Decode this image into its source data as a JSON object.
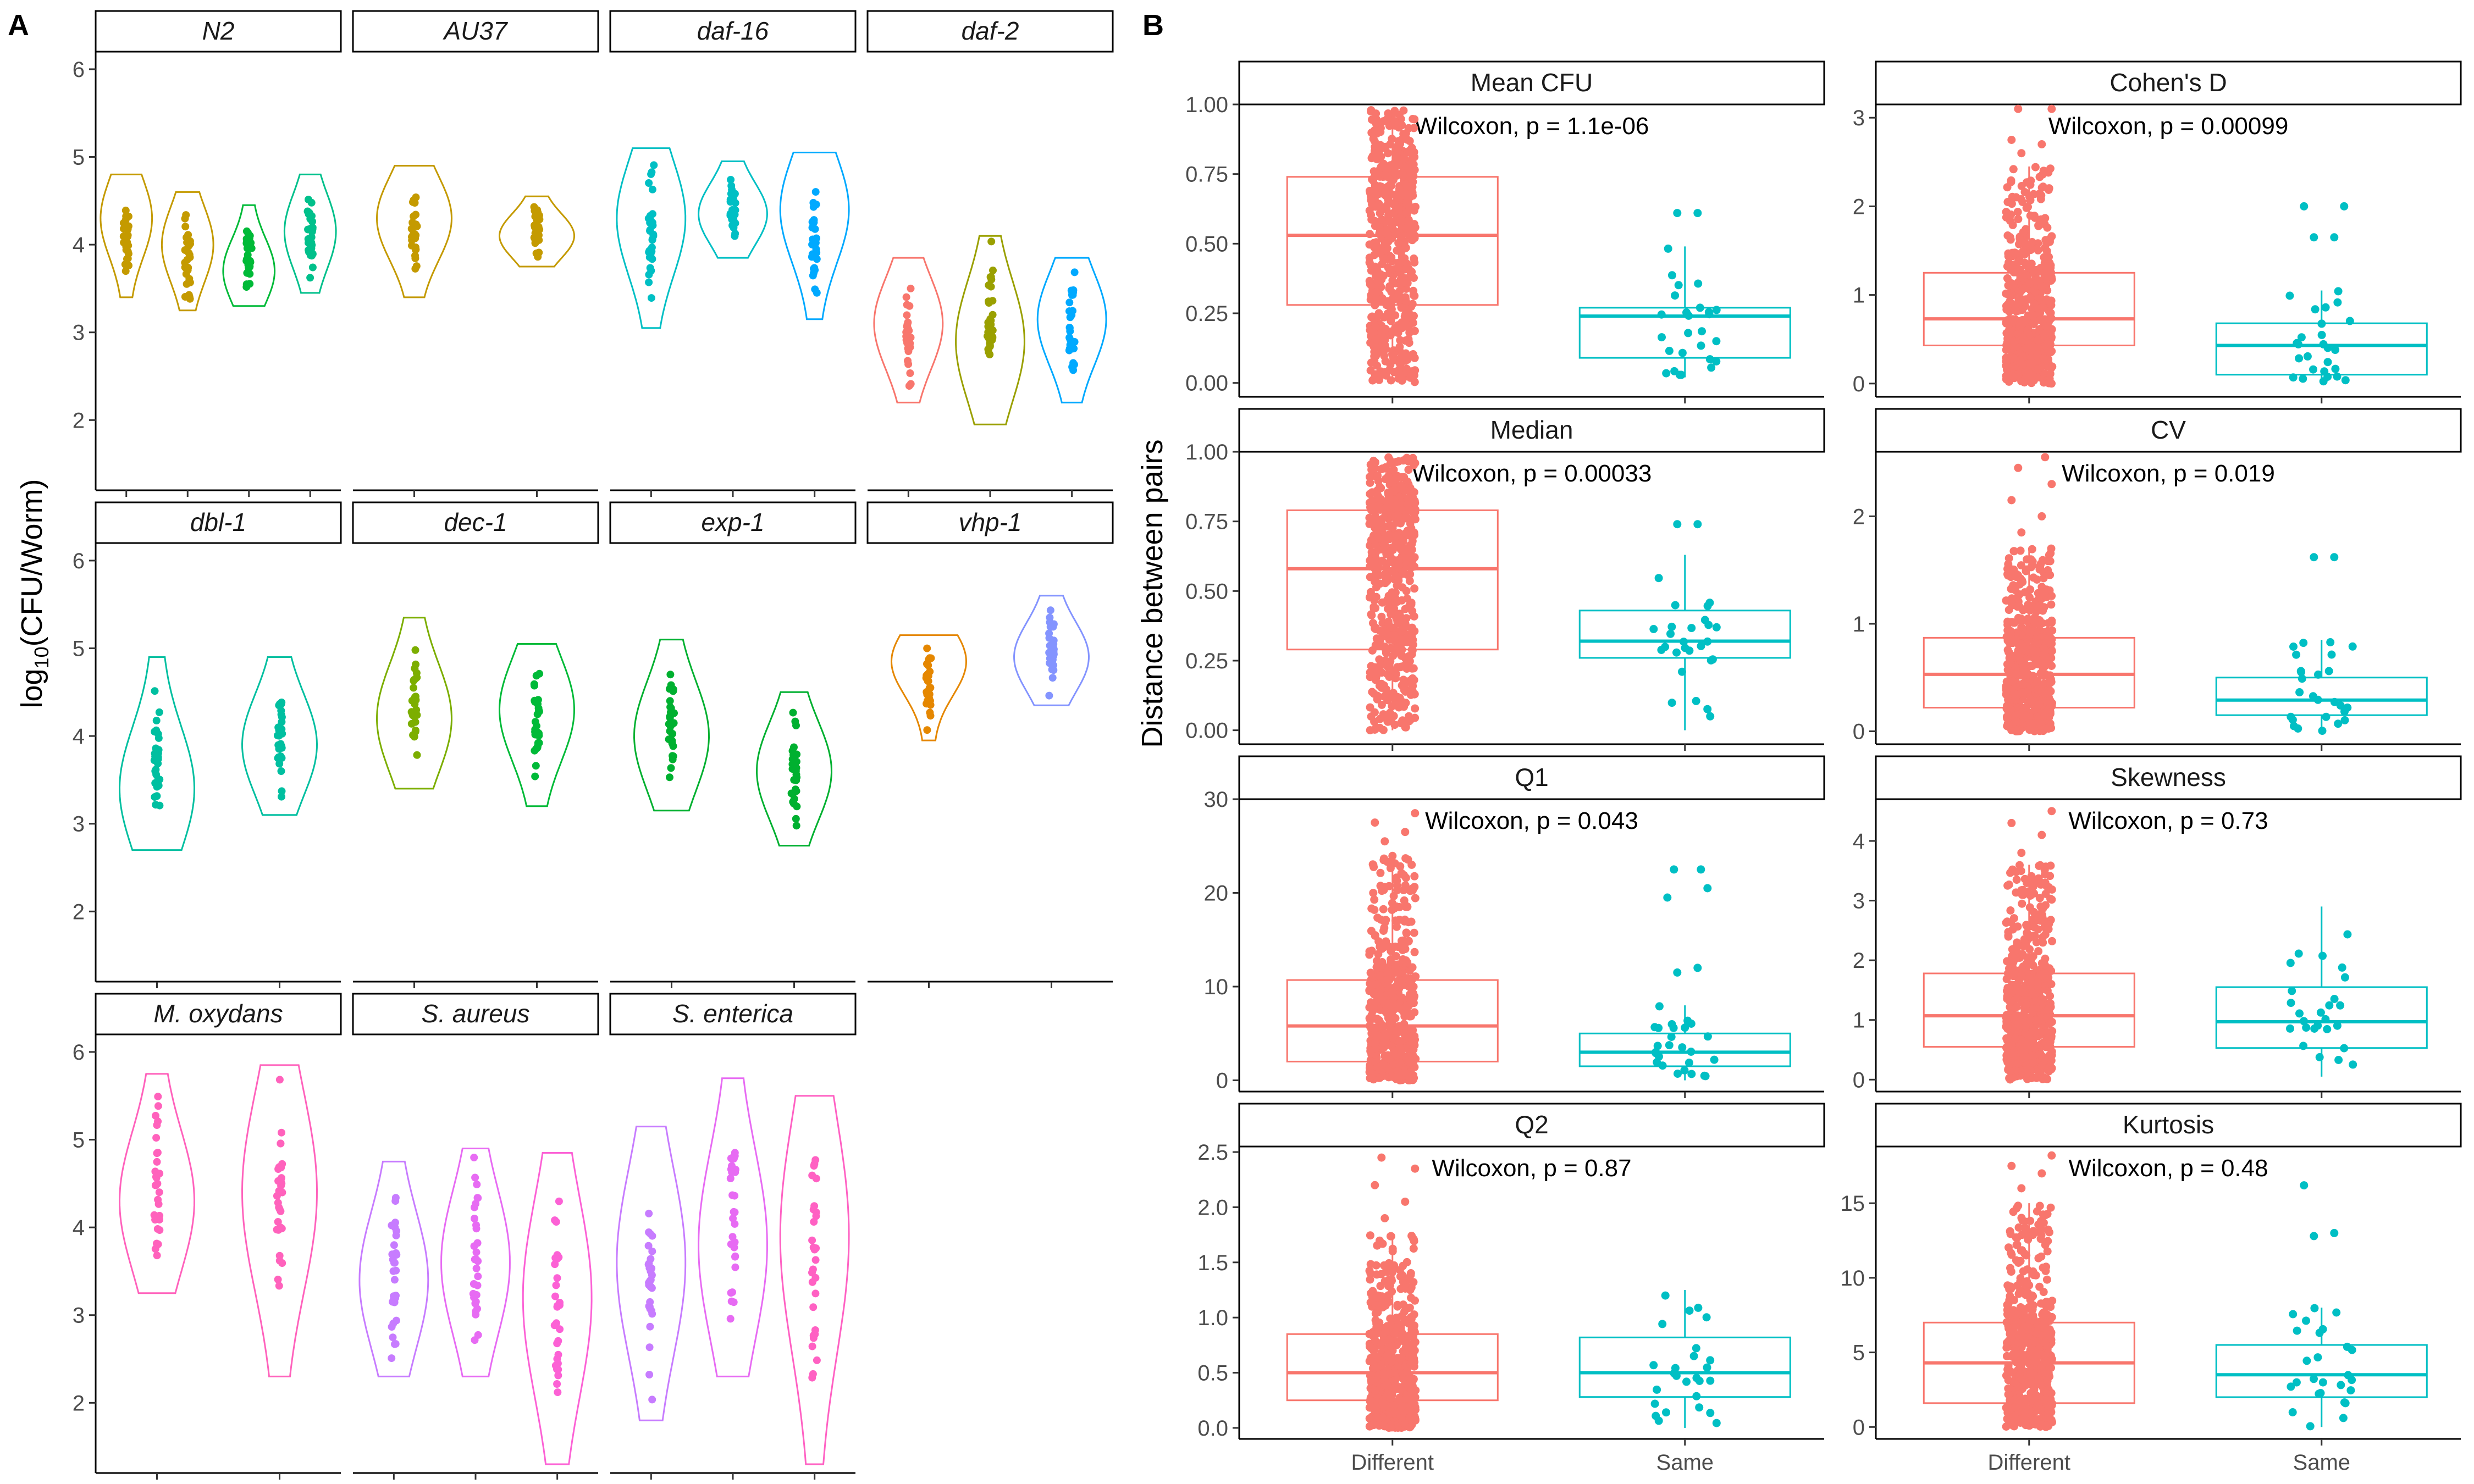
{
  "panel_labels": {
    "a": "A",
    "b": "B"
  },
  "chart_data": [
    {
      "type": "violin",
      "panel": "A",
      "ylabel": "log10(CFU/Worm)",
      "ylim": [
        1.2,
        6.2
      ],
      "yticks": [
        2,
        3,
        4,
        5,
        6
      ],
      "grid": false,
      "facets": [
        {
          "strip": "N2",
          "italic": true,
          "violins": [
            {
              "color": "#C49A00",
              "min": 3.4,
              "max": 4.8,
              "median": 4.3
            },
            {
              "color": "#C49A00",
              "min": 3.25,
              "max": 4.6,
              "median": 4.0
            },
            {
              "color": "#00BA38",
              "min": 3.3,
              "max": 4.45,
              "median": 3.7
            },
            {
              "color": "#00C08B",
              "min": 3.45,
              "max": 4.8,
              "median": 4.15
            }
          ]
        },
        {
          "strip": "AU37",
          "italic": true,
          "violins": [
            {
              "color": "#C49A00",
              "min": 3.4,
              "max": 4.9,
              "median": 4.3
            },
            {
              "color": "#C49A00",
              "min": 3.75,
              "max": 4.55,
              "median": 4.1
            }
          ]
        },
        {
          "strip": "daf-16",
          "italic": true,
          "violins": [
            {
              "color": "#00BFC4",
              "min": 3.05,
              "max": 5.1,
              "median": 4.3
            },
            {
              "color": "#00BFC4",
              "min": 3.85,
              "max": 4.95,
              "median": 4.35
            },
            {
              "color": "#00A9FF",
              "min": 3.15,
              "max": 5.05,
              "median": 4.4
            }
          ]
        },
        {
          "strip": "daf-2",
          "italic": true,
          "violins": [
            {
              "color": "#F8766D",
              "min": 2.2,
              "max": 3.85,
              "median": 3.1
            },
            {
              "color": "#9AA000",
              "min": 1.95,
              "max": 4.1,
              "median": 2.9
            },
            {
              "color": "#00A9FF",
              "min": 2.2,
              "max": 3.85,
              "median": 3.15
            }
          ]
        },
        {
          "strip": "dbl-1",
          "italic": true,
          "violins": [
            {
              "color": "#00BFA0",
              "min": 2.7,
              "max": 4.9,
              "median": 3.4
            },
            {
              "color": "#00BFA0",
              "min": 3.1,
              "max": 4.9,
              "median": 3.9
            }
          ]
        },
        {
          "strip": "dec-1",
          "italic": true,
          "violins": [
            {
              "color": "#7CAE00",
              "min": 3.4,
              "max": 5.35,
              "median": 4.2
            },
            {
              "color": "#00BA38",
              "min": 3.2,
              "max": 5.05,
              "median": 4.3
            }
          ]
        },
        {
          "strip": "exp-1",
          "italic": true,
          "violins": [
            {
              "color": "#00B030",
              "min": 3.15,
              "max": 5.1,
              "median": 4.0
            },
            {
              "color": "#00B030",
              "min": 2.75,
              "max": 4.5,
              "median": 3.6
            }
          ]
        },
        {
          "strip": "vhp-1",
          "italic": true,
          "violins": [
            {
              "color": "#E58700",
              "min": 3.95,
              "max": 5.15,
              "median": 4.85
            },
            {
              "color": "#8494FF",
              "min": 4.35,
              "max": 5.6,
              "median": 4.9
            }
          ]
        },
        {
          "strip": "M. oxydans",
          "italic": true,
          "violins": [
            {
              "color": "#FF62BC",
              "min": 3.25,
              "max": 5.75,
              "median": 4.3
            },
            {
              "color": "#FF62BC",
              "min": 2.3,
              "max": 5.85,
              "median": 4.4
            }
          ]
        },
        {
          "strip": "S. aureus",
          "italic": true,
          "violins": [
            {
              "color": "#C77CFF",
              "min": 2.3,
              "max": 4.75,
              "median": 3.4
            },
            {
              "color": "#E76BF3",
              "min": 2.3,
              "max": 4.9,
              "median": 3.6
            },
            {
              "color": "#FC61D5",
              "min": 1.3,
              "max": 4.85,
              "median": 3.2
            }
          ]
        },
        {
          "strip": "S. enterica",
          "italic": true,
          "violins": [
            {
              "color": "#C77CFF",
              "min": 1.8,
              "max": 5.15,
              "median": 3.6
            },
            {
              "color": "#E76BF3",
              "min": 2.3,
              "max": 5.7,
              "median": 3.8
            },
            {
              "color": "#FF61C3",
              "min": 1.3,
              "max": 5.5,
              "median": 3.9
            }
          ]
        }
      ]
    },
    {
      "type": "box",
      "panel": "B",
      "ylabel": "Distance between pairs",
      "categories": [
        "Different",
        "Same"
      ],
      "colors": {
        "Different": "#F8766D",
        "Same": "#00BFC4"
      },
      "grid": false,
      "facets": [
        {
          "strip": "Mean CFU",
          "annotation": "Wilcoxon, p = 1.1e-06",
          "ylim": [
            -0.05,
            1.0
          ],
          "yticks": [
            0.0,
            0.25,
            0.5,
            0.75,
            1.0
          ],
          "tick_labels": [
            "0.00",
            "0.25",
            "0.50",
            "0.75",
            "1.00"
          ],
          "boxes": [
            {
              "category": "Different",
              "whisker_low": 0.0,
              "q1": 0.28,
              "median": 0.53,
              "q3": 0.74,
              "whisker_high": 0.98,
              "n": 560
            },
            {
              "category": "Same",
              "whisker_low": 0.02,
              "q1": 0.09,
              "median": 0.24,
              "q3": 0.27,
              "whisker_high": 0.49,
              "n": 26
            }
          ],
          "outliers": {
            "Same": [
              0.61,
              0.61
            ]
          }
        },
        {
          "strip": "Cohen's D",
          "annotation": "Wilcoxon, p = 0.00099",
          "ylim": [
            -0.15,
            3.15
          ],
          "yticks": [
            0,
            1,
            2,
            3
          ],
          "tick_labels": [
            "0",
            "1",
            "2",
            "3"
          ],
          "boxes": [
            {
              "category": "Different",
              "whisker_low": 0.0,
              "q1": 0.43,
              "median": 0.73,
              "q3": 1.25,
              "whisker_high": 2.45,
              "n": 560
            },
            {
              "category": "Same",
              "whisker_low": 0.0,
              "q1": 0.1,
              "median": 0.43,
              "q3": 0.68,
              "whisker_high": 1.05,
              "n": 26
            }
          ],
          "outliers": {
            "Different": [
              2.6,
              2.7,
              2.75,
              3.1,
              3.1
            ],
            "Same": [
              1.65,
              1.65,
              2.0,
              2.0
            ]
          }
        },
        {
          "strip": "Median",
          "annotation": "Wilcoxon, p = 0.00033",
          "ylim": [
            -0.05,
            1.0
          ],
          "yticks": [
            0.0,
            0.25,
            0.5,
            0.75,
            1.0
          ],
          "tick_labels": [
            "0.00",
            "0.25",
            "0.50",
            "0.75",
            "1.00"
          ],
          "boxes": [
            {
              "category": "Different",
              "whisker_low": 0.0,
              "q1": 0.29,
              "median": 0.58,
              "q3": 0.79,
              "whisker_high": 0.98,
              "n": 560
            },
            {
              "category": "Same",
              "whisker_low": 0.0,
              "q1": 0.26,
              "median": 0.32,
              "q3": 0.43,
              "whisker_high": 0.63,
              "n": 26
            }
          ],
          "outliers": {
            "Same": [
              0.74,
              0.74
            ]
          }
        },
        {
          "strip": "CV",
          "annotation": "Wilcoxon, p = 0.019",
          "ylim": [
            -0.12,
            2.6
          ],
          "yticks": [
            0,
            1,
            2
          ],
          "tick_labels": [
            "0",
            "1",
            "2"
          ],
          "boxes": [
            {
              "category": "Different",
              "whisker_low": 0.0,
              "q1": 0.22,
              "median": 0.53,
              "q3": 0.87,
              "whisker_high": 1.7,
              "n": 560
            },
            {
              "category": "Same",
              "whisker_low": 0.0,
              "q1": 0.15,
              "median": 0.29,
              "q3": 0.5,
              "whisker_high": 0.85,
              "n": 26
            }
          ],
          "outliers": {
            "Different": [
              1.85,
              2.0,
              2.15,
              2.3,
              2.45,
              2.55
            ],
            "Same": [
              1.62,
              1.62
            ]
          }
        },
        {
          "strip": "Q1",
          "annotation": "Wilcoxon, p = 0.043",
          "ylim": [
            -1.2,
            30
          ],
          "yticks": [
            0,
            10,
            20,
            30
          ],
          "tick_labels": [
            "0",
            "10",
            "20",
            "30"
          ],
          "boxes": [
            {
              "category": "Different",
              "whisker_low": 0.0,
              "q1": 2.0,
              "median": 5.8,
              "q3": 10.7,
              "whisker_high": 24.0,
              "n": 560
            },
            {
              "category": "Same",
              "whisker_low": 0.0,
              "q1": 1.5,
              "median": 3.0,
              "q3": 5.0,
              "whisker_high": 8.0,
              "n": 26
            }
          ],
          "outliers": {
            "Different": [
              25.5,
              26.5,
              27.5,
              28.5
            ],
            "Same": [
              11.5,
              12.0,
              19.5,
              20.5,
              22.5,
              22.5
            ]
          }
        },
        {
          "strip": "Skewness",
          "annotation": "Wilcoxon, p = 0.73",
          "ylim": [
            -0.2,
            4.7
          ],
          "yticks": [
            0,
            1,
            2,
            3,
            4
          ],
          "tick_labels": [
            "0",
            "1",
            "2",
            "3",
            "4"
          ],
          "boxes": [
            {
              "category": "Different",
              "whisker_low": 0.0,
              "q1": 0.55,
              "median": 1.07,
              "q3": 1.78,
              "whisker_high": 3.6,
              "n": 560
            },
            {
              "category": "Same",
              "whisker_low": 0.05,
              "q1": 0.53,
              "median": 0.97,
              "q3": 1.55,
              "whisker_high": 2.9,
              "n": 26
            }
          ],
          "outliers": {
            "Different": [
              3.8,
              4.1,
              4.3,
              4.5
            ]
          }
        },
        {
          "strip": "Q2",
          "annotation": "Wilcoxon, p = 0.87",
          "ylim": [
            -0.1,
            2.55
          ],
          "yticks": [
            0.0,
            0.5,
            1.0,
            1.5,
            2.0,
            2.5
          ],
          "tick_labels": [
            "0.0",
            "0.5",
            "1.0",
            "1.5",
            "2.0",
            "2.5"
          ],
          "boxes": [
            {
              "category": "Different",
              "whisker_low": 0.0,
              "q1": 0.25,
              "median": 0.5,
              "q3": 0.85,
              "whisker_high": 1.75,
              "n": 560
            },
            {
              "category": "Same",
              "whisker_low": 0.0,
              "q1": 0.28,
              "median": 0.5,
              "q3": 0.82,
              "whisker_high": 1.25,
              "n": 26
            }
          ],
          "outliers": {
            "Different": [
              1.9,
              2.05,
              2.2,
              2.35,
              2.45
            ]
          }
        },
        {
          "strip": "Kurtosis",
          "annotation": "Wilcoxon, p = 0.48",
          "ylim": [
            -0.8,
            18.8
          ],
          "yticks": [
            0,
            5,
            10,
            15
          ],
          "tick_labels": [
            "0",
            "5",
            "10",
            "15"
          ],
          "boxes": [
            {
              "category": "Different",
              "whisker_low": 0.0,
              "q1": 1.6,
              "median": 4.3,
              "q3": 7.0,
              "whisker_high": 15.0,
              "n": 560
            },
            {
              "category": "Same",
              "whisker_low": 0.0,
              "q1": 2.0,
              "median": 3.5,
              "q3": 5.5,
              "whisker_high": 8.0,
              "n": 26
            }
          ],
          "outliers": {
            "Different": [
              16.0,
              17.0,
              17.5,
              18.2
            ],
            "Same": [
              12.8,
              13.0,
              16.2
            ]
          }
        }
      ]
    }
  ]
}
